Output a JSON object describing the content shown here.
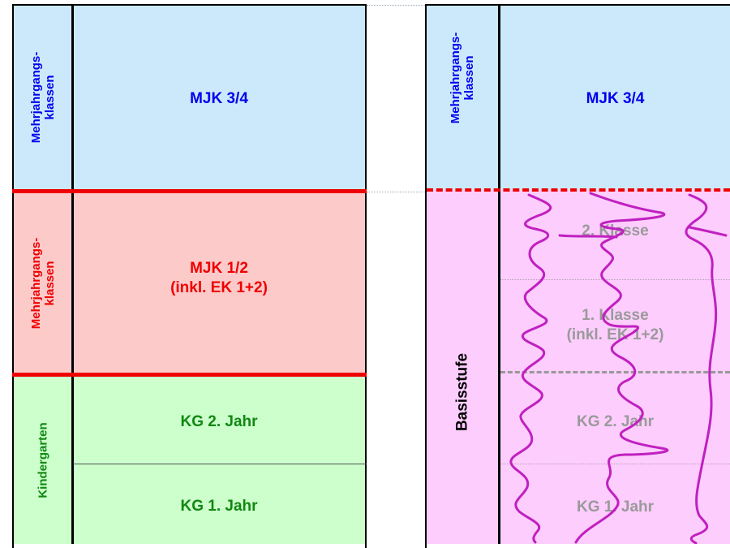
{
  "left": {
    "top": {
      "side": "Mehrjahrgangs-\nklassen",
      "label": "MJK 3/4"
    },
    "middle": {
      "side": "Mehrjahrgangs-\nklassen",
      "label": "MJK 1/2\n(inkl. EK 1+2)"
    },
    "bottom": {
      "side": "Kindergarten",
      "label_upper": "KG 2. Jahr",
      "label_lower": "KG 1. Jahr"
    }
  },
  "right": {
    "top": {
      "side": "Mehrjahrgangs-\nklassen",
      "label": "MJK 3/4"
    },
    "basis": {
      "side": "Basisstufe",
      "row1": "2. Klasse",
      "row2": "1. Klasse\n(inkl. EK 1+2)",
      "row3": "KG 2. Jahr",
      "row4": "KG 1. Jahr"
    }
  },
  "colors": {
    "blue_fill": "#cce9fb",
    "red_fill": "#fdcaca",
    "green_fill": "#ccffcc",
    "pink_fill": "#fdcdfd",
    "scribble": "#c020c0"
  }
}
